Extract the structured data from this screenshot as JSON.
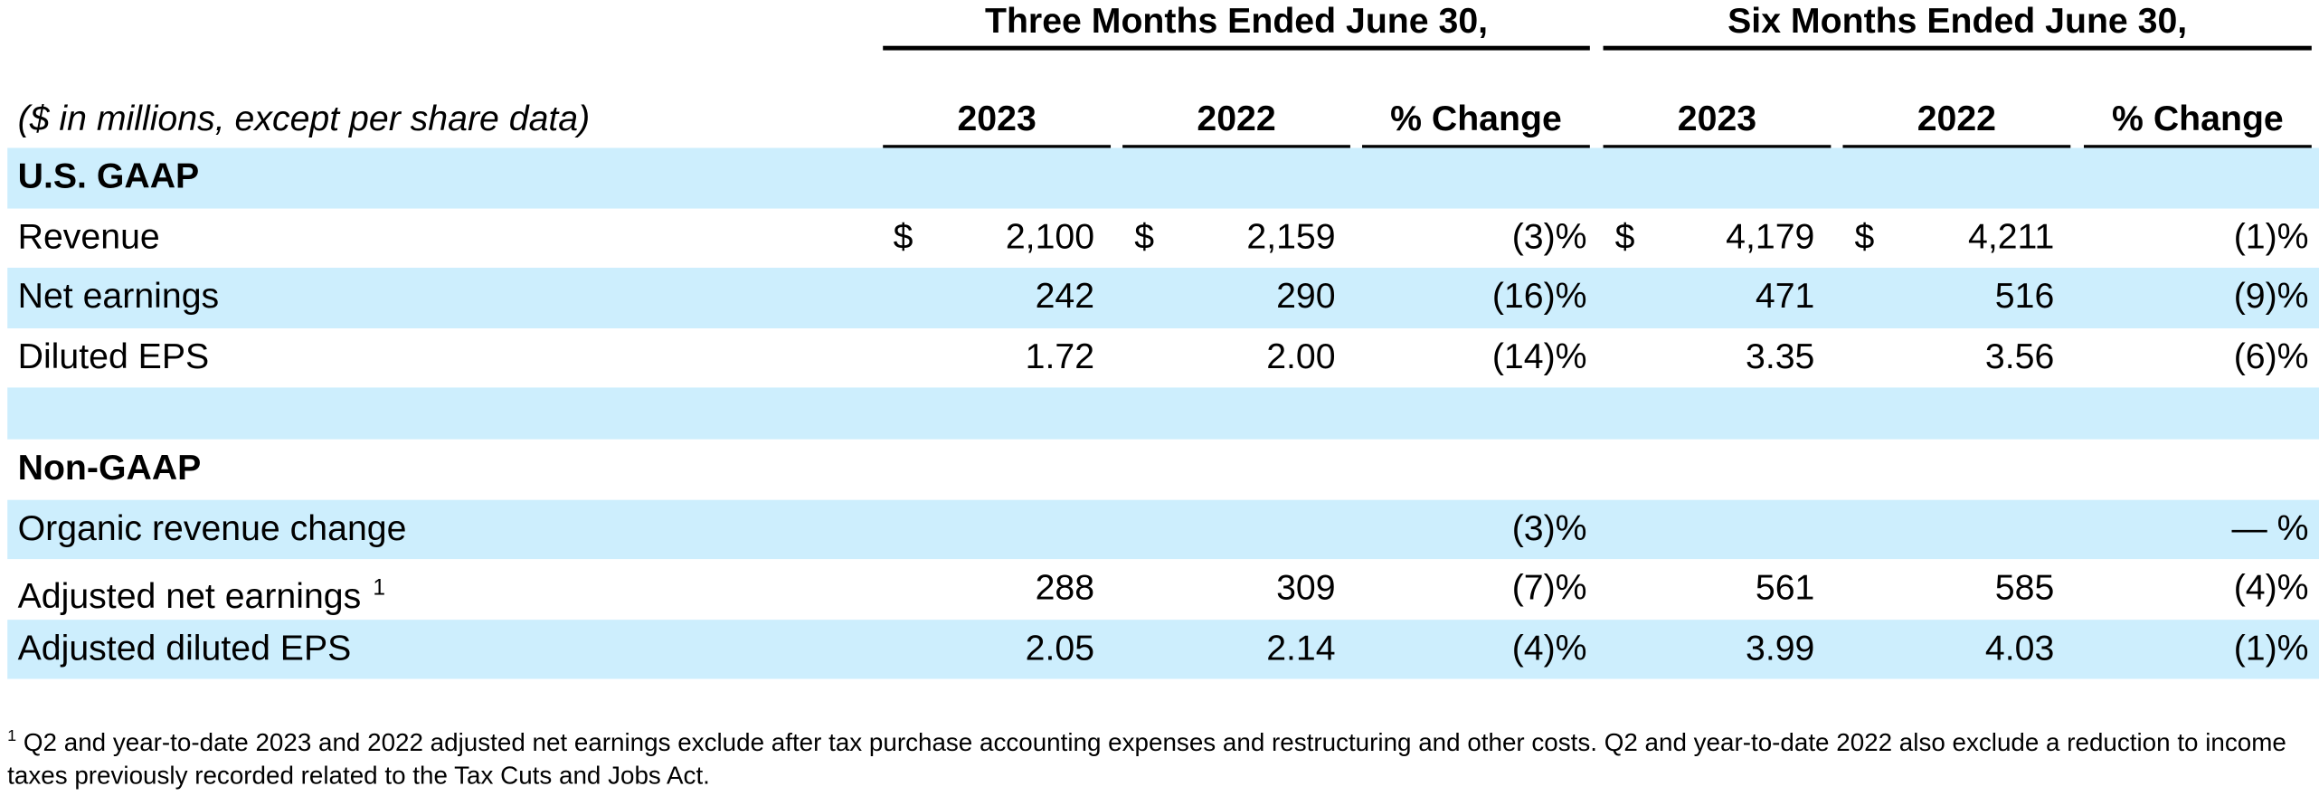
{
  "table": {
    "group_headers": [
      "Three Months Ended June 30,",
      "Six Months Ended June 30,"
    ],
    "units_note": "($ in millions, except per share data)",
    "columns": [
      "2023",
      "2022",
      "% Change",
      "2023",
      "2022",
      "% Change"
    ],
    "sections": [
      {
        "title": "U.S. GAAP",
        "rows": [
          {
            "label": "Revenue",
            "cells": [
              {
                "currency": "$",
                "amount": "2,100"
              },
              {
                "currency": "$",
                "amount": "2,159"
              },
              "(3)%",
              {
                "currency": "$",
                "amount": "4,179"
              },
              {
                "currency": "$",
                "amount": "4,211"
              },
              "(1)%"
            ]
          },
          {
            "label": "Net earnings",
            "cells": [
              "242",
              "290",
              "(16)%",
              "471",
              "516",
              "(9)%"
            ]
          },
          {
            "label": "Diluted EPS",
            "cells": [
              "1.72",
              "2.00",
              "(14)%",
              "3.35",
              "3.56",
              "(6)%"
            ]
          }
        ]
      },
      {
        "title": "Non-GAAP",
        "rows": [
          {
            "label": "Organic revenue change",
            "cells": [
              null,
              null,
              "(3)%",
              null,
              null,
              "— %"
            ]
          },
          {
            "label": "Adjusted net earnings",
            "note": "1",
            "cells": [
              "288",
              "309",
              "(7)%",
              "561",
              "585",
              "(4)%"
            ]
          },
          {
            "label": "Adjusted diluted EPS",
            "cells": [
              "2.05",
              "2.14",
              "(4)%",
              "3.99",
              "4.03",
              "(1)%"
            ]
          }
        ]
      }
    ]
  },
  "footnote": {
    "marker": "1",
    "text": "Q2 and year-to-date 2023 and 2022 adjusted net earnings exclude after tax purchase accounting expenses and restructuring and other costs. Q2 and year-to-date 2022 also exclude a reduction to income taxes previously recorded related to the Tax Cuts and Jobs Act."
  }
}
